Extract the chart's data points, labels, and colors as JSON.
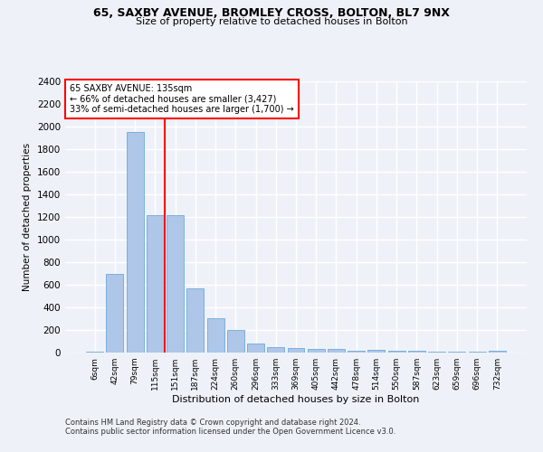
{
  "title_line1": "65, SAXBY AVENUE, BROMLEY CROSS, BOLTON, BL7 9NX",
  "title_line2": "Size of property relative to detached houses in Bolton",
  "xlabel": "Distribution of detached houses by size in Bolton",
  "ylabel": "Number of detached properties",
  "categories": [
    "6sqm",
    "42sqm",
    "79sqm",
    "115sqm",
    "151sqm",
    "187sqm",
    "224sqm",
    "260sqm",
    "296sqm",
    "333sqm",
    "369sqm",
    "405sqm",
    "442sqm",
    "478sqm",
    "514sqm",
    "550sqm",
    "587sqm",
    "623sqm",
    "659sqm",
    "696sqm",
    "732sqm"
  ],
  "values": [
    10,
    700,
    1950,
    1220,
    1220,
    570,
    305,
    200,
    80,
    45,
    40,
    35,
    30,
    20,
    25,
    20,
    15,
    5,
    5,
    5,
    20
  ],
  "bar_color": "#aec6e8",
  "bar_edge_color": "#5a9fd4",
  "vline_x": 3.5,
  "vline_color": "red",
  "annotation_text": "65 SAXBY AVENUE: 135sqm\n← 66% of detached houses are smaller (3,427)\n33% of semi-detached houses are larger (1,700) →",
  "annotation_box_color": "white",
  "annotation_box_edge_color": "red",
  "ylim": [
    0,
    2400
  ],
  "yticks": [
    0,
    200,
    400,
    600,
    800,
    1000,
    1200,
    1400,
    1600,
    1800,
    2000,
    2200,
    2400
  ],
  "footer_line1": "Contains HM Land Registry data © Crown copyright and database right 2024.",
  "footer_line2": "Contains public sector information licensed under the Open Government Licence v3.0.",
  "background_color": "#eef2f8",
  "grid_color": "white"
}
